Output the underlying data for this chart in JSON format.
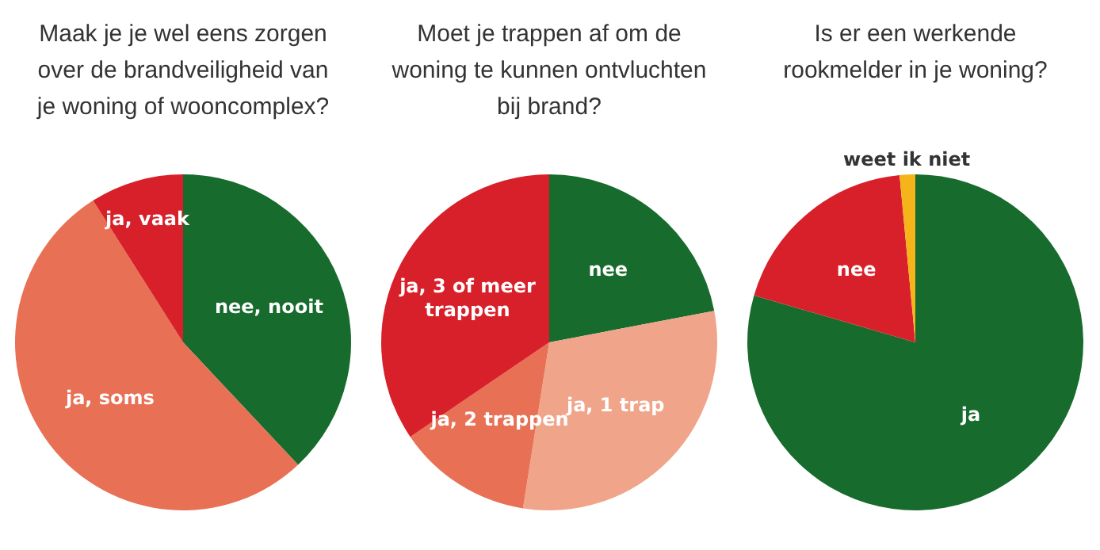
{
  "chart_data": [
    {
      "type": "pie",
      "title": "Maak je je wel eens zorgen over de brandveiligheid van je woning of wooncomplex?",
      "categories": [
        "nee, nooit",
        "ja, soms",
        "ja, vaak"
      ],
      "values": [
        38,
        53,
        9
      ],
      "colors": [
        "#176b2c",
        "#e87055",
        "#d8202a"
      ],
      "legend": false
    },
    {
      "type": "pie",
      "title": "Moet je trappen af om de woning te kunnen ontvluchten bij brand?",
      "categories": [
        "nee",
        "ja, 1 trap",
        "ja, 2 trappen",
        "ja, 3 of meer trappen"
      ],
      "values": [
        22,
        30.5,
        13,
        34.5
      ],
      "colors": [
        "#176b2c",
        "#f0a48a",
        "#e87055",
        "#d8202a"
      ],
      "legend": false
    },
    {
      "type": "pie",
      "title": "Is er een werkende rookmelder in je woning?",
      "categories": [
        "ja",
        "nee",
        "weet ik niet"
      ],
      "values": [
        79.5,
        19,
        1.5
      ],
      "colors": [
        "#176b2c",
        "#d8202a",
        "#f5b41a"
      ],
      "legend": false
    }
  ]
}
